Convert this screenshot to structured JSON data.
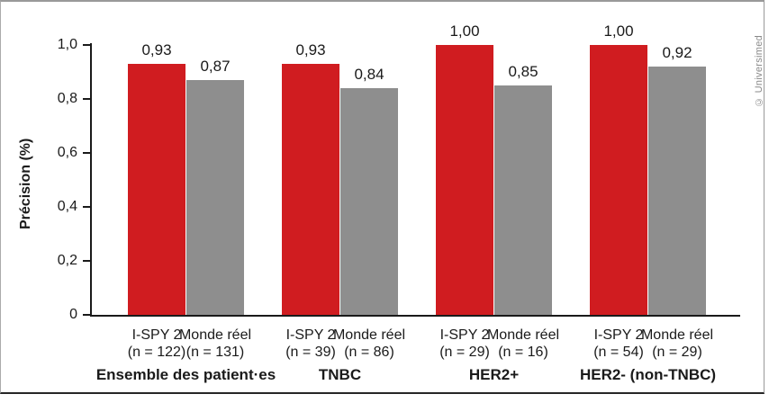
{
  "copyright": "© Universimed",
  "chart_data": {
    "type": "bar",
    "title": "",
    "xlabel": "",
    "ylabel": "Précision (%)",
    "ylim": [
      0,
      1.0
    ],
    "grid": false,
    "legend": "none",
    "decimal_separator": ",",
    "yticks": [
      {
        "value": 0,
        "label": "0"
      },
      {
        "value": 0.2,
        "label": "0,2"
      },
      {
        "value": 0.4,
        "label": "0,4"
      },
      {
        "value": 0.6,
        "label": "0,6"
      },
      {
        "value": 0.8,
        "label": "0,8"
      },
      {
        "value": 1.0,
        "label": "1,0"
      }
    ],
    "series": [
      {
        "name": "I-SPY 2",
        "color": "#d01c20"
      },
      {
        "name": "Monde réel",
        "color": "#8e8e8e"
      }
    ],
    "groups": [
      {
        "label": "Ensemble des patient·es",
        "bars": [
          {
            "series": "I-SPY 2",
            "n_label": "(n = 122)",
            "value": 0.93,
            "value_label": "0,93"
          },
          {
            "series": "Monde réel",
            "n_label": "(n = 131)",
            "value": 0.87,
            "value_label": "0,87"
          }
        ]
      },
      {
        "label": "TNBC",
        "bars": [
          {
            "series": "I-SPY 2",
            "n_label": "(n = 39)",
            "value": 0.93,
            "value_label": "0,93"
          },
          {
            "series": "Monde réel",
            "n_label": "(n = 86)",
            "value": 0.84,
            "value_label": "0,84"
          }
        ]
      },
      {
        "label": "HER2+",
        "bars": [
          {
            "series": "I-SPY 2",
            "n_label": "(n = 29)",
            "value": 1.0,
            "value_label": "1,00"
          },
          {
            "series": "Monde réel",
            "n_label": "(n = 16)",
            "value": 0.85,
            "value_label": "0,85"
          }
        ]
      },
      {
        "label": "HER2- (non-TNBC)",
        "bars": [
          {
            "series": "I-SPY 2",
            "n_label": "(n = 54)",
            "value": 1.0,
            "value_label": "1,00"
          },
          {
            "series": "Monde réel",
            "n_label": "(n = 29)",
            "value": 0.92,
            "value_label": "0,92"
          }
        ]
      }
    ]
  }
}
